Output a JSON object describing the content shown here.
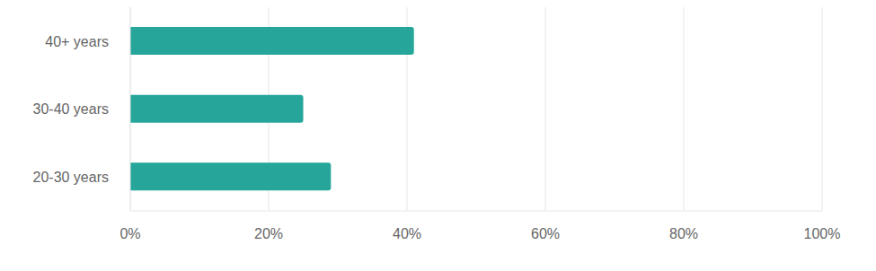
{
  "chart_data": {
    "type": "bar",
    "orientation": "horizontal",
    "categories": [
      "40+ years",
      "30-40 years",
      "20-30 years"
    ],
    "values": [
      41,
      25,
      29
    ],
    "color": "#26a69a",
    "xlim": [
      0,
      100
    ],
    "xticks": [
      {
        "value": 0,
        "label": "0%"
      },
      {
        "value": 20,
        "label": "20%"
      },
      {
        "value": 40,
        "label": "40%"
      },
      {
        "value": 60,
        "label": "60%"
      },
      {
        "value": 80,
        "label": "80%"
      },
      {
        "value": 100,
        "label": "100%"
      }
    ],
    "grid": true
  }
}
